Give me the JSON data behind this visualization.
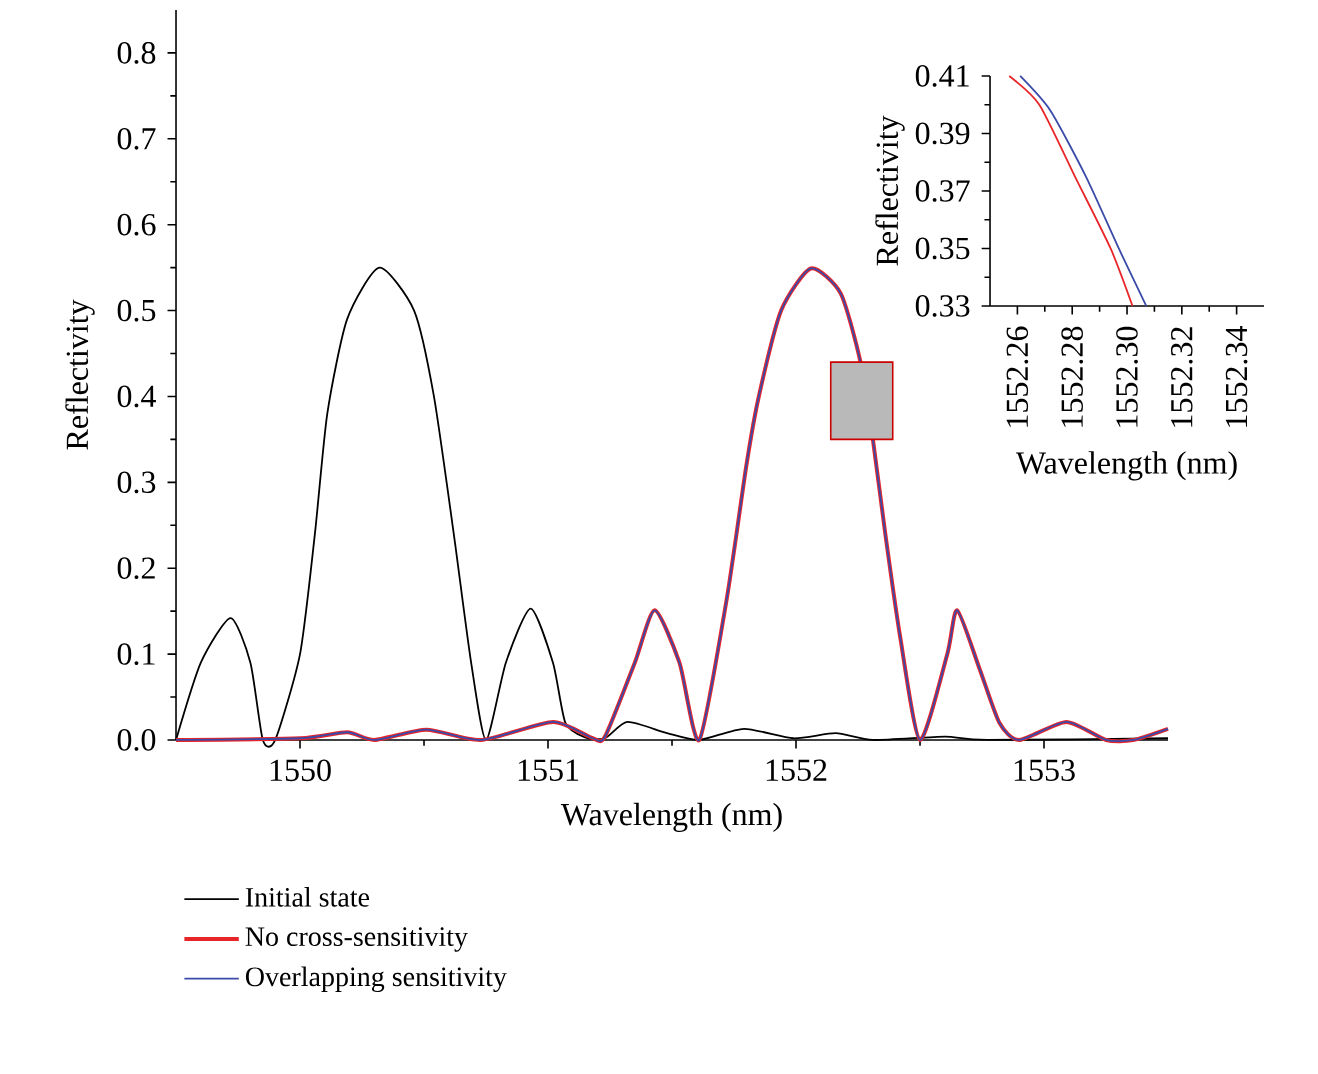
{
  "chart_data": [
    {
      "type": "line",
      "xlabel": "Wavelength (nm)",
      "ylabel": "Reflectivity",
      "xlim": [
        1549.5,
        1553.5
      ],
      "ylim": [
        0,
        0.85
      ],
      "xticks": [
        1550,
        1551,
        1552,
        1553
      ],
      "yticks": [
        {
          "value": 0,
          "label": "0.0"
        },
        0.1,
        0.2,
        0.3,
        0.4,
        0.5,
        0.6,
        0.7,
        0.8
      ],
      "legend": "bottom",
      "series": [
        {
          "name": "Initial state",
          "color": "#000000",
          "x": [
            1549.5,
            1549.6,
            1549.72,
            1549.8,
            1549.85,
            1549.9,
            1550.0,
            1550.06,
            1550.11,
            1550.19,
            1550.32,
            1550.46,
            1550.54,
            1550.62,
            1550.69,
            1550.75,
            1550.83,
            1550.93,
            1551.02,
            1551.07,
            1551.15,
            1551.23,
            1551.32,
            1551.48,
            1551.61,
            1551.79,
            1551.99,
            1552.16,
            1552.31,
            1552.6,
            1552.77,
            1553.5
          ],
          "values": [
            0,
            0.09,
            0.142,
            0.09,
            0,
            0,
            0.1,
            0.24,
            0.38,
            0.49,
            0.55,
            0.5,
            0.4,
            0.24,
            0.09,
            0,
            0.09,
            0.153,
            0.09,
            0.02,
            0.003,
            0.002,
            0.021,
            0.008,
            0,
            0.013,
            0.002,
            0.008,
            0,
            0.004,
            0,
            0.002
          ]
        },
        {
          "name": "No cross-sensitivity",
          "color": "#e8262a",
          "x": [
            1549.5,
            1550.0,
            1550.19,
            1550.3,
            1550.51,
            1550.73,
            1551.02,
            1551.18,
            1551.23,
            1551.35,
            1551.43,
            1551.53,
            1551.61,
            1551.72,
            1551.8,
            1551.85,
            1551.94,
            1552.06,
            1552.18,
            1552.26,
            1552.31,
            1552.36,
            1552.42,
            1552.5,
            1552.61,
            1552.65,
            1552.74,
            1552.82,
            1552.9,
            1553.09,
            1553.25,
            1553.36,
            1553.5
          ],
          "values": [
            0,
            0.002,
            0.009,
            0,
            0.012,
            0,
            0.021,
            0.002,
            0.004,
            0.09,
            0.151,
            0.09,
            0,
            0.163,
            0.32,
            0.4,
            0.5,
            0.549,
            0.52,
            0.44,
            0.35,
            0.24,
            0.12,
            0,
            0.1,
            0.151,
            0.083,
            0.02,
            0,
            0.021,
            0,
            0,
            0.013
          ]
        },
        {
          "name": "Overlapping sensitivity",
          "color": "#3a4aa8",
          "x": [
            1549.5,
            1550.0,
            1550.19,
            1550.3,
            1550.51,
            1550.73,
            1551.02,
            1551.18,
            1551.23,
            1551.35,
            1551.43,
            1551.53,
            1551.61,
            1551.72,
            1551.8,
            1551.85,
            1551.94,
            1552.06,
            1552.18,
            1552.26,
            1552.31,
            1552.36,
            1552.42,
            1552.5,
            1552.61,
            1552.65,
            1552.74,
            1552.82,
            1552.9,
            1553.09,
            1553.25,
            1553.36,
            1553.5
          ],
          "values": [
            0,
            0.002,
            0.009,
            0,
            0.012,
            0,
            0.021,
            0.002,
            0.004,
            0.09,
            0.151,
            0.09,
            0,
            0.163,
            0.32,
            0.4,
            0.5,
            0.549,
            0.52,
            0.44,
            0.35,
            0.24,
            0.12,
            0,
            0.1,
            0.151,
            0.083,
            0.02,
            0,
            0.021,
            0,
            0,
            0.013
          ]
        }
      ]
    },
    {
      "type": "line",
      "xlabel": "Wavelength (nm)",
      "ylabel": "Reflectivity",
      "xlim": [
        1552.25,
        1552.35
      ],
      "ylim": [
        0.33,
        0.41
      ],
      "xticks": [
        {
          "value": 1552.26,
          "label": "1552.26"
        },
        {
          "value": 1552.28,
          "label": "1552.28"
        },
        {
          "value": 1552.3,
          "label": "1552.30"
        },
        {
          "value": 1552.32,
          "label": "1552.32"
        },
        {
          "value": 1552.34,
          "label": "1552.34"
        }
      ],
      "yticks": [
        {
          "value": 0.33,
          "label": "0.33"
        },
        {
          "value": 0.35,
          "label": "0.35"
        },
        {
          "value": 0.37,
          "label": "0.37"
        },
        {
          "value": 0.39,
          "label": "0.39"
        },
        {
          "value": 0.41,
          "label": "0.41"
        }
      ],
      "series": [
        {
          "color": "#e8262a",
          "x": [
            1552.257,
            1552.268,
            1552.281,
            1552.294,
            1552.302
          ],
          "values": [
            0.41,
            0.4,
            0.375,
            0.35,
            0.33
          ]
        },
        {
          "color": "#3a4aa8",
          "x": [
            1552.261,
            1552.272,
            1552.285,
            1552.297,
            1552.307
          ],
          "values": [
            0.41,
            0.398,
            0.375,
            0.35,
            0.33
          ]
        }
      ]
    }
  ]
}
